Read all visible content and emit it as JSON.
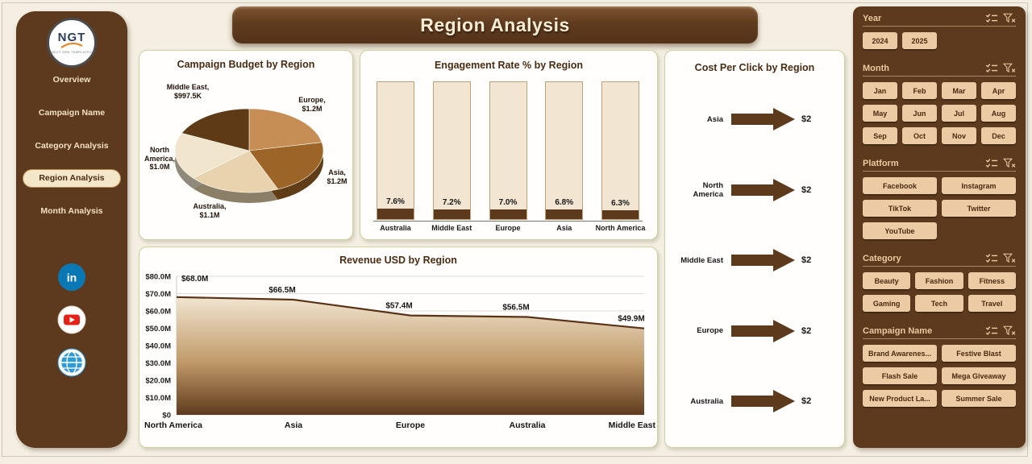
{
  "header": {
    "title": "Region Analysis"
  },
  "sidebar": {
    "logo": {
      "text": "NGT",
      "subtext": "NEXT GEN TEMPLATES"
    },
    "items": [
      {
        "label": "Overview",
        "active": false
      },
      {
        "label": "Campaign Name",
        "active": false
      },
      {
        "label": "Category Analysis",
        "active": false
      },
      {
        "label": "Region Analysis",
        "active": true
      },
      {
        "label": "Month Analysis",
        "active": false
      }
    ],
    "social": [
      {
        "name": "linkedin"
      },
      {
        "name": "youtube"
      },
      {
        "name": "website"
      }
    ]
  },
  "colors": {
    "brand_dark_brown": "#5e3a1c",
    "panel_brown": "#5d3a1e",
    "button_tan": "#eccaa3",
    "card_border_olive": "#cdd0a0",
    "area_line": "#5a3316",
    "pie_palette": [
      "#c68e55",
      "#9c6527",
      "#e8d3ae",
      "#f1e5cd",
      "#5e3a17"
    ]
  },
  "chart_data": [
    {
      "type": "pie",
      "title": "Campaign Budget by Region",
      "labels": [
        "Europe",
        "Asia",
        "Australia",
        "North America",
        "Middle East"
      ],
      "values": [
        1200000,
        1200000,
        1100000,
        1000000,
        997500
      ],
      "value_labels": [
        "Europe, $1.2M",
        "Asia, $1.2M",
        "Australia, $1.1M",
        "North America, $1.0M",
        "Middle East, $997.5K"
      ],
      "colors": [
        "#c68e55",
        "#9c6527",
        "#e8d3ae",
        "#f1e5cd",
        "#5e3a17"
      ]
    },
    {
      "type": "bar",
      "title": "Engagement Rate % by Region",
      "categories": [
        "Australia",
        "Middle East",
        "Europe",
        "Asia",
        "North America"
      ],
      "values": [
        7.6,
        7.2,
        7.0,
        6.8,
        6.3
      ],
      "value_labels": [
        "7.6%",
        "7.2%",
        "7.0%",
        "6.8%",
        "6.3%"
      ],
      "ylim": [
        0,
        100
      ]
    },
    {
      "type": "bar-arrow",
      "title": "Cost Per Click by Region",
      "categories": [
        "Asia",
        "North America",
        "Middle East",
        "Europe",
        "Australia"
      ],
      "values": [
        2,
        2,
        2,
        2,
        2
      ],
      "value_labels": [
        "$2",
        "$2",
        "$2",
        "$2",
        "$2"
      ]
    },
    {
      "type": "area",
      "title": "Revenue USD by Region",
      "categories": [
        "North America",
        "Asia",
        "Europe",
        "Australia",
        "Middle East"
      ],
      "values": [
        68.0,
        66.5,
        57.4,
        56.5,
        49.9
      ],
      "value_labels": [
        "$68.0M",
        "$66.5M",
        "$57.4M",
        "$56.5M",
        "$49.9M"
      ],
      "ylim": [
        0,
        80
      ],
      "ytick_labels": [
        "$0",
        "$10.0M",
        "$20.0M",
        "$30.0M",
        "$40.0M",
        "$50.0M",
        "$60.0M",
        "$70.0M",
        "$80.0M"
      ],
      "grid": true
    }
  ],
  "filters": [
    {
      "key": "year",
      "label": "Year",
      "cols": 4,
      "options": [
        "2024",
        "2025"
      ]
    },
    {
      "key": "month",
      "label": "Month",
      "cols": 4,
      "options": [
        "Jan",
        "Feb",
        "Mar",
        "Apr",
        "May",
        "Jun",
        "Jul",
        "Aug",
        "Sep",
        "Oct",
        "Nov",
        "Dec"
      ]
    },
    {
      "key": "platform",
      "label": "Platform",
      "cols": 2,
      "options": [
        "Facebook",
        "Instagram",
        "TikTok",
        "Twitter",
        "YouTube"
      ]
    },
    {
      "key": "category",
      "label": "Category",
      "cols": 3,
      "options": [
        "Beauty",
        "Fashion",
        "Fitness",
        "Gaming",
        "Tech",
        "Travel"
      ]
    },
    {
      "key": "campaign",
      "label": "Campaign Name",
      "cols": 2,
      "options": [
        "Brand Awarenes...",
        "Festive Blast",
        "Flash Sale",
        "Mega Giveaway",
        "New Product La...",
        "Summer Sale"
      ]
    }
  ]
}
